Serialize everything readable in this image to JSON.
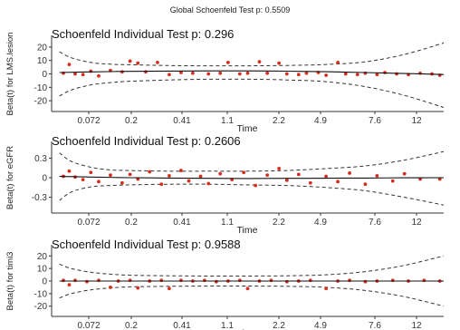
{
  "global_title": "Global Schoenfeld Test p: 0.5509",
  "chart_data": [
    {
      "type": "scatter",
      "title": "Schoenfeld Individual Test p: 0.296",
      "xlabel": "Time",
      "ylabel": "Beta(t) for LMS.lesion",
      "x_tick_labels": [
        "0.072",
        "0.2",
        "0.41",
        "1.1",
        "2.2",
        "4.9",
        "7.6",
        "12"
      ],
      "y_ticks": [
        20,
        10,
        0,
        -10,
        -20
      ],
      "ylim": [
        -26,
        26
      ],
      "grid": false,
      "point_color": "#d62d1f",
      "fit_line": [
        [
          0.02,
          1.0
        ],
        [
          0.1,
          1.5
        ],
        [
          0.2,
          1.9
        ],
        [
          0.3,
          2.1
        ],
        [
          0.4,
          2.2
        ],
        [
          0.5,
          2.2
        ],
        [
          0.6,
          2.0
        ],
        [
          0.7,
          1.6
        ],
        [
          0.8,
          1.0
        ],
        [
          0.9,
          0.3
        ],
        [
          1.0,
          -0.5
        ]
      ],
      "ci_upper": [
        [
          0.02,
          16.5
        ],
        [
          0.05,
          12.0
        ],
        [
          0.1,
          8.5
        ],
        [
          0.15,
          7.2
        ],
        [
          0.2,
          6.8
        ],
        [
          0.3,
          6.2
        ],
        [
          0.4,
          6.0
        ],
        [
          0.5,
          6.0
        ],
        [
          0.6,
          6.3
        ],
        [
          0.7,
          7.0
        ],
        [
          0.8,
          9.0
        ],
        [
          0.9,
          14.5
        ],
        [
          1.0,
          23.0
        ]
      ],
      "ci_lower": [
        [
          0.02,
          -16.5
        ],
        [
          0.05,
          -12.0
        ],
        [
          0.1,
          -8.2
        ],
        [
          0.15,
          -6.5
        ],
        [
          0.2,
          -5.5
        ],
        [
          0.3,
          -4.5
        ],
        [
          0.4,
          -4.0
        ],
        [
          0.5,
          -4.0
        ],
        [
          0.6,
          -4.5
        ],
        [
          0.7,
          -5.8
        ],
        [
          0.8,
          -9.5
        ],
        [
          0.9,
          -16.0
        ],
        [
          1.0,
          -25.0
        ]
      ],
      "points": [
        [
          0.03,
          0.5
        ],
        [
          0.045,
          7.0
        ],
        [
          0.06,
          0.0
        ],
        [
          0.08,
          -0.5
        ],
        [
          0.1,
          2.0
        ],
        [
          0.12,
          -1.5
        ],
        [
          0.15,
          2.5
        ],
        [
          0.18,
          1.5
        ],
        [
          0.2,
          9.5
        ],
        [
          0.22,
          8.0
        ],
        [
          0.24,
          1.5
        ],
        [
          0.27,
          8.5
        ],
        [
          0.3,
          -0.5
        ],
        [
          0.33,
          1.0
        ],
        [
          0.36,
          0.5
        ],
        [
          0.4,
          0.0
        ],
        [
          0.43,
          0.5
        ],
        [
          0.45,
          8.5
        ],
        [
          0.48,
          0.0
        ],
        [
          0.5,
          0.5
        ],
        [
          0.53,
          9.0
        ],
        [
          0.55,
          0.5
        ],
        [
          0.58,
          8.0
        ],
        [
          0.6,
          0.0
        ],
        [
          0.63,
          -0.5
        ],
        [
          0.65,
          0.5
        ],
        [
          0.68,
          1.0
        ],
        [
          0.7,
          -1.0
        ],
        [
          0.73,
          8.5
        ],
        [
          0.75,
          0.0
        ],
        [
          0.78,
          -0.5
        ],
        [
          0.8,
          0.5
        ],
        [
          0.83,
          -0.5
        ],
        [
          0.85,
          1.0
        ],
        [
          0.88,
          0.0
        ],
        [
          0.91,
          -0.5
        ],
        [
          0.94,
          0.5
        ],
        [
          0.97,
          0.0
        ],
        [
          0.99,
          -1.0
        ]
      ]
    },
    {
      "type": "scatter",
      "title": "Schoenfeld Individual Test p: 0.2606",
      "xlabel": "Time",
      "ylabel": "Beta(t) for eGFR",
      "x_tick_labels": [
        "0.072",
        "0.2",
        "0.41",
        "1.1",
        "2.2",
        "4.9",
        "7.6",
        "12"
      ],
      "y_ticks": [
        0.3,
        0.0,
        -0.3
      ],
      "ylim": [
        -0.5,
        0.5
      ],
      "grid": false,
      "point_color": "#d62d1f",
      "fit_line": [
        [
          0.02,
          0.02
        ],
        [
          0.1,
          0.01
        ],
        [
          0.2,
          0.0
        ],
        [
          0.3,
          -0.005
        ],
        [
          0.4,
          -0.01
        ],
        [
          0.5,
          -0.012
        ],
        [
          0.6,
          -0.01
        ],
        [
          0.7,
          -0.008
        ],
        [
          0.8,
          -0.005
        ],
        [
          0.9,
          -0.002
        ],
        [
          1.0,
          0.0
        ]
      ],
      "ci_upper": [
        [
          0.02,
          0.38
        ],
        [
          0.05,
          0.25
        ],
        [
          0.1,
          0.16
        ],
        [
          0.15,
          0.12
        ],
        [
          0.2,
          0.11
        ],
        [
          0.3,
          0.1
        ],
        [
          0.4,
          0.1
        ],
        [
          0.5,
          0.1
        ],
        [
          0.6,
          0.11
        ],
        [
          0.7,
          0.14
        ],
        [
          0.8,
          0.18
        ],
        [
          0.9,
          0.27
        ],
        [
          1.0,
          0.4
        ]
      ],
      "ci_lower": [
        [
          0.02,
          -0.35
        ],
        [
          0.05,
          -0.22
        ],
        [
          0.1,
          -0.14
        ],
        [
          0.15,
          -0.12
        ],
        [
          0.2,
          -0.11
        ],
        [
          0.3,
          -0.1
        ],
        [
          0.4,
          -0.1
        ],
        [
          0.5,
          -0.11
        ],
        [
          0.6,
          -0.12
        ],
        [
          0.7,
          -0.15
        ],
        [
          0.8,
          -0.2
        ],
        [
          0.9,
          -0.3
        ],
        [
          1.0,
          -0.42
        ]
      ],
      "points": [
        [
          0.03,
          0.02
        ],
        [
          0.045,
          0.1
        ],
        [
          0.06,
          0.01
        ],
        [
          0.08,
          -0.03
        ],
        [
          0.1,
          0.08
        ],
        [
          0.12,
          -0.06
        ],
        [
          0.15,
          0.04
        ],
        [
          0.18,
          -0.08
        ],
        [
          0.2,
          0.05
        ],
        [
          0.22,
          -0.02
        ],
        [
          0.25,
          0.09
        ],
        [
          0.28,
          -0.1
        ],
        [
          0.3,
          0.03
        ],
        [
          0.33,
          0.11
        ],
        [
          0.35,
          -0.05
        ],
        [
          0.38,
          0.02
        ],
        [
          0.4,
          -0.09
        ],
        [
          0.43,
          0.06
        ],
        [
          0.46,
          -0.03
        ],
        [
          0.49,
          0.08
        ],
        [
          0.52,
          -0.12
        ],
        [
          0.55,
          0.04
        ],
        [
          0.58,
          0.14
        ],
        [
          0.6,
          -0.04
        ],
        [
          0.63,
          0.05
        ],
        [
          0.66,
          -0.08
        ],
        [
          0.7,
          0.02
        ],
        [
          0.73,
          -0.06
        ],
        [
          0.76,
          0.07
        ],
        [
          0.8,
          -0.1
        ],
        [
          0.83,
          0.03
        ],
        [
          0.87,
          -0.05
        ],
        [
          0.9,
          0.06
        ],
        [
          0.94,
          -0.02
        ],
        [
          0.99,
          -0.02
        ]
      ]
    },
    {
      "type": "scatter",
      "title": "Schoenfeld Individual Test p: 0.9588",
      "xlabel": "Time",
      "ylabel": "Beta(t) for timi3",
      "x_tick_labels": [
        "0.072",
        "0.2",
        "0.41",
        "1.1",
        "2.2",
        "4.9",
        "7.6",
        "12"
      ],
      "y_ticks": [
        20,
        10,
        0,
        -10,
        -20
      ],
      "ylim": [
        -26,
        26
      ],
      "grid": false,
      "point_color": "#d62d1f",
      "fit_line": [
        [
          0.02,
          0.0
        ],
        [
          0.5,
          0.0
        ],
        [
          1.0,
          0.0
        ]
      ],
      "ci_upper": [
        [
          0.02,
          13.5
        ],
        [
          0.05,
          10.0
        ],
        [
          0.1,
          7.0
        ],
        [
          0.15,
          5.5
        ],
        [
          0.2,
          4.6
        ],
        [
          0.3,
          4.2
        ],
        [
          0.4,
          4.0
        ],
        [
          0.5,
          4.0
        ],
        [
          0.6,
          4.2
        ],
        [
          0.7,
          5.0
        ],
        [
          0.8,
          7.5
        ],
        [
          0.9,
          12.5
        ],
        [
          1.0,
          20.0
        ]
      ],
      "ci_lower": [
        [
          0.02,
          -13.5
        ],
        [
          0.05,
          -10.0
        ],
        [
          0.1,
          -7.0
        ],
        [
          0.15,
          -5.5
        ],
        [
          0.2,
          -4.6
        ],
        [
          0.3,
          -4.2
        ],
        [
          0.4,
          -4.0
        ],
        [
          0.5,
          -4.0
        ],
        [
          0.6,
          -4.2
        ],
        [
          0.7,
          -5.0
        ],
        [
          0.8,
          -7.5
        ],
        [
          0.9,
          -12.5
        ],
        [
          1.0,
          -20.0
        ]
      ],
      "points": [
        [
          0.03,
          0.5
        ],
        [
          0.045,
          -3.0
        ],
        [
          0.06,
          0.5
        ],
        [
          0.09,
          -0.5
        ],
        [
          0.12,
          0.5
        ],
        [
          0.15,
          -5.0
        ],
        [
          0.17,
          0.0
        ],
        [
          0.2,
          0.5
        ],
        [
          0.22,
          -5.5
        ],
        [
          0.25,
          0.0
        ],
        [
          0.28,
          0.5
        ],
        [
          0.3,
          -6.0
        ],
        [
          0.33,
          0.5
        ],
        [
          0.36,
          0.0
        ],
        [
          0.39,
          0.5
        ],
        [
          0.42,
          -0.5
        ],
        [
          0.45,
          0.0
        ],
        [
          0.48,
          0.5
        ],
        [
          0.5,
          -6.0
        ],
        [
          0.53,
          0.0
        ],
        [
          0.56,
          0.5
        ],
        [
          0.6,
          -0.5
        ],
        [
          0.63,
          0.0
        ],
        [
          0.66,
          0.5
        ],
        [
          0.7,
          -6.0
        ],
        [
          0.73,
          0.0
        ],
        [
          0.76,
          0.5
        ],
        [
          0.8,
          -0.5
        ],
        [
          0.83,
          0.0
        ],
        [
          0.87,
          0.5
        ],
        [
          0.91,
          0.0
        ],
        [
          0.95,
          0.5
        ],
        [
          0.99,
          0.0
        ]
      ]
    }
  ]
}
